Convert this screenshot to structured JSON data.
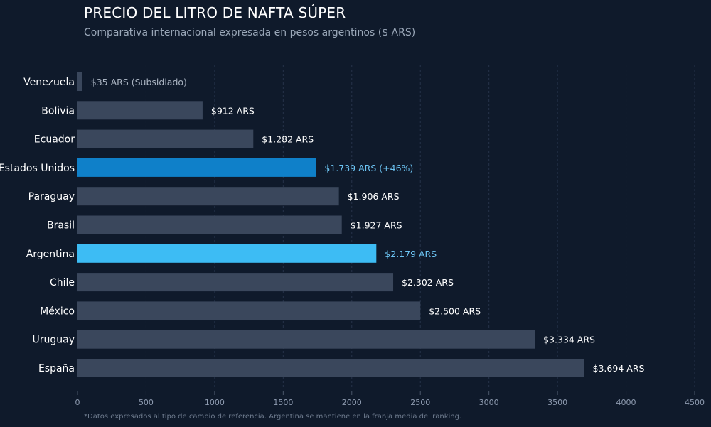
{
  "chart_data": {
    "type": "bar",
    "orientation": "horizontal",
    "title": "PRECIO DEL LITRO DE NAFTA SÚPER",
    "subtitle": "Comparativa internacional expresada en pesos argentinos ($ ARS)",
    "footnote": "*Datos expresados al tipo de cambio de referencia. Argentina se mantiene en la franja media del ranking.",
    "xlim": [
      0,
      4500
    ],
    "xticks": [
      0,
      500,
      1000,
      1500,
      2000,
      2500,
      3000,
      3500,
      4000,
      4500
    ],
    "grid": "vertical dashed",
    "categories": [
      "Venezuela",
      "Bolivia",
      "Ecuador",
      "Estados Unidos",
      "Paraguay",
      "Brasil",
      "Argentina",
      "Chile",
      "México",
      "Uruguay",
      "España"
    ],
    "values": [
      35,
      912,
      1282,
      1739,
      1906,
      1927,
      2179,
      2302,
      2500,
      3334,
      3694
    ],
    "data_labels": [
      "$35 ARS (Subsidiado)",
      "$912 ARS",
      "$1.282 ARS",
      "$1.739 ARS (+46%)",
      "$1.906 ARS",
      "$1.927 ARS",
      "$2.179 ARS",
      "$2.302 ARS",
      "$2.500 ARS",
      "$3.334 ARS",
      "$3.694 ARS"
    ],
    "highlight": [
      "default",
      "default",
      "default",
      "usa",
      "default",
      "default",
      "argentina",
      "default",
      "default",
      "default",
      "default"
    ],
    "colors": {
      "default": "#3a475c",
      "usa": "#0f80c9",
      "argentina": "#3dbcf4",
      "label_default": "#ffffff",
      "label_muted": "#aab4c2",
      "label_highlight": "#6cc4f3"
    }
  }
}
